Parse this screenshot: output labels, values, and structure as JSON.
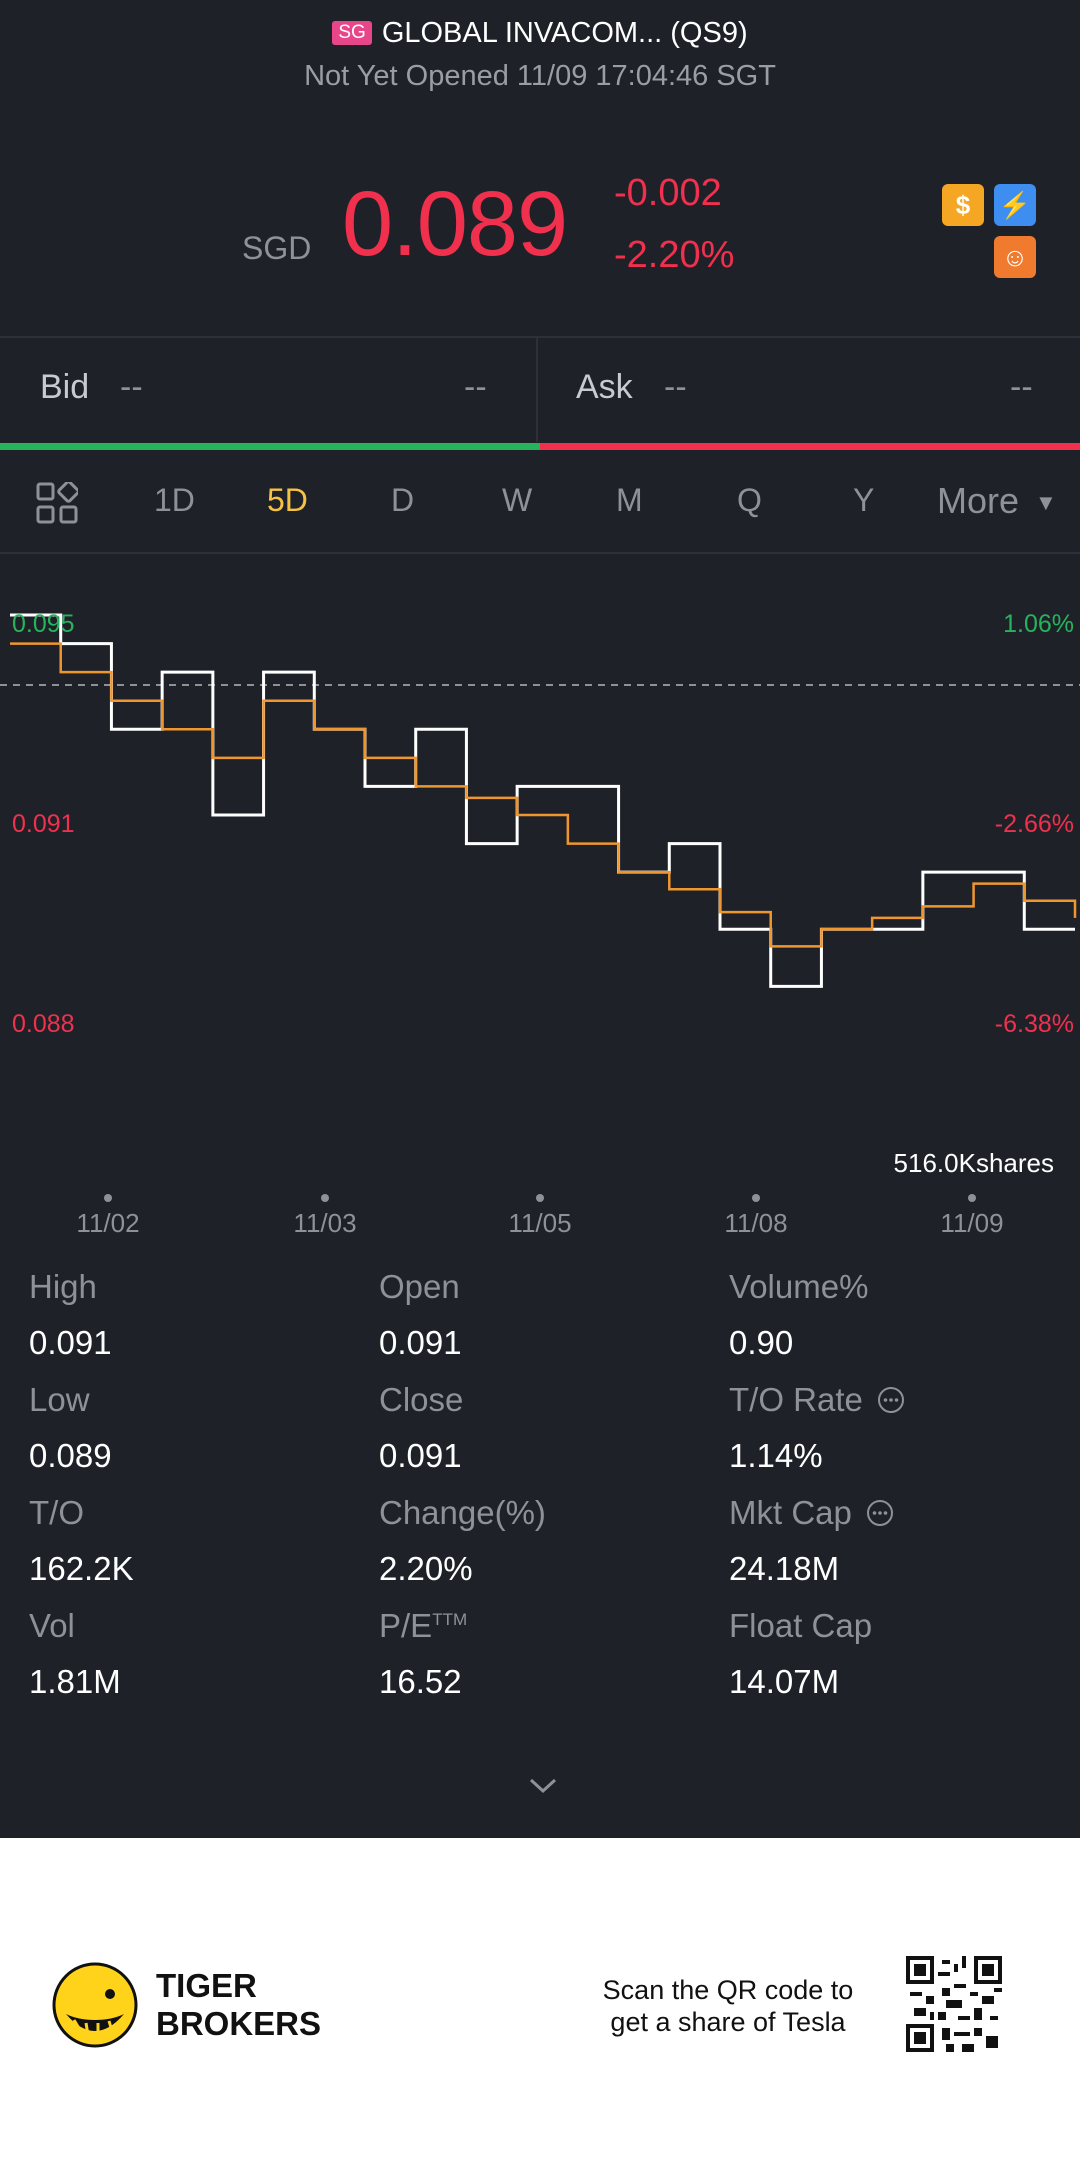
{
  "header": {
    "market_badge": "SG",
    "stock_name": "GLOBAL INVACOM... (QS9)",
    "status": "Not Yet Opened 11/09 17:04:46 SGT"
  },
  "quote": {
    "currency": "SGD",
    "price": "0.089",
    "change": "-0.002",
    "change_pct": "-2.20%",
    "icons": [
      "dollar-icon",
      "lightning-icon",
      "brain-icon"
    ]
  },
  "bid_ask": {
    "bid_label": "Bid",
    "bid_price": "--",
    "bid_size": "--",
    "ask_label": "Ask",
    "ask_price": "--",
    "ask_size": "--"
  },
  "tabs": {
    "grid_icon": "grid-icon",
    "items": [
      "1D",
      "5D",
      "D",
      "W",
      "M",
      "Q",
      "Y"
    ],
    "active": "5D",
    "more_label": "More"
  },
  "chart_data": {
    "type": "line",
    "y_left_labels": [
      "0.095",
      "0.091",
      "0.088"
    ],
    "y_right_labels": [
      "1.06%",
      "-2.66%",
      "-6.38%"
    ],
    "x_labels": [
      "11/02",
      "11/03",
      "11/05",
      "11/08",
      "11/09"
    ],
    "volume_label": "516.0Kshares",
    "ylim": [
      0.088,
      0.095
    ],
    "series": [
      {
        "values": [
          0.095,
          0.0945,
          0.093,
          0.094,
          0.0915,
          0.094,
          0.093,
          0.092,
          0.093,
          0.091,
          0.092,
          0.092,
          0.0905,
          0.091,
          0.0895,
          0.0885,
          0.0895,
          0.0895,
          0.0905,
          0.0905,
          0.0895,
          0.0895
        ]
      },
      {
        "values": [
          0.0945,
          0.094,
          0.0935,
          0.093,
          0.0925,
          0.0935,
          0.093,
          0.0925,
          0.092,
          0.0918,
          0.0915,
          0.091,
          0.0905,
          0.0902,
          0.0898,
          0.0892,
          0.0895,
          0.0897,
          0.0899,
          0.0903,
          0.09,
          0.0897
        ]
      }
    ],
    "colors": {
      "price_line": "#ffffff",
      "avg_line": "#f0962e",
      "up": "#27b35b",
      "down": "#f0304d"
    }
  },
  "stats": {
    "col1": [
      {
        "label": "High",
        "value": "0.091"
      },
      {
        "label": "Low",
        "value": "0.089"
      },
      {
        "label": "T/O",
        "value": "162.2K"
      },
      {
        "label": "Vol",
        "value": "1.81M"
      }
    ],
    "col2": [
      {
        "label": "Open",
        "value": "0.091"
      },
      {
        "label": "Close",
        "value": "0.091"
      },
      {
        "label": "Change(%)",
        "value": "2.20%"
      },
      {
        "label": "P/E",
        "sup": "TTM",
        "value": "16.52"
      }
    ],
    "col3": [
      {
        "label": "Volume%",
        "value": "0.90"
      },
      {
        "label": "T/O Rate",
        "value": "1.14%"
      },
      {
        "label": "Mkt Cap",
        "value": "24.18M"
      },
      {
        "label": "Float Cap",
        "value": "14.07M"
      }
    ]
  },
  "footer": {
    "brand_line1": "TIGER",
    "brand_line2": "BROKERS",
    "promo_line1": "Scan the QR code to",
    "promo_line2": "get a share of Tesla"
  }
}
